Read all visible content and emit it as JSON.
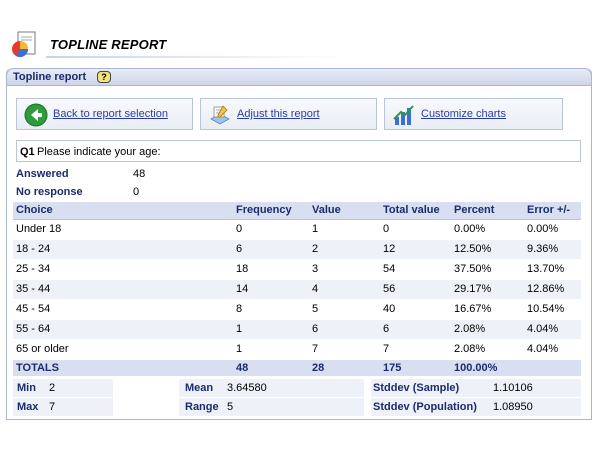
{
  "header": {
    "title": "TOPLINE REPORT"
  },
  "panel": {
    "title": "Topline report",
    "help": "?"
  },
  "toolbar": {
    "back_label": "Back to report selection",
    "adjust_label": "Adjust this report",
    "charts_label": "Customize charts"
  },
  "question": {
    "number": "Q1",
    "text": "Please indicate your age:"
  },
  "stats": {
    "answered_label": "Answered",
    "answered_value": "48",
    "noresponse_label": "No response",
    "noresponse_value": "0"
  },
  "table": {
    "columns": [
      "Choice",
      "Frequency",
      "Value",
      "Total value",
      "Percent",
      "Error +/-"
    ],
    "rows": [
      [
        "Under 18",
        "0",
        "1",
        "0",
        "0.00%",
        "0.00%"
      ],
      [
        "18 - 24",
        "6",
        "2",
        "12",
        "12.50%",
        "9.36%"
      ],
      [
        "25 - 34",
        "18",
        "3",
        "54",
        "37.50%",
        "13.70%"
      ],
      [
        "35 - 44",
        "14",
        "4",
        "56",
        "29.17%",
        "12.86%"
      ],
      [
        "45 - 54",
        "8",
        "5",
        "40",
        "16.67%",
        "10.54%"
      ],
      [
        "55 - 64",
        "1",
        "6",
        "6",
        "2.08%",
        "4.04%"
      ],
      [
        "65 or older",
        "1",
        "7",
        "7",
        "2.08%",
        "4.04%"
      ]
    ],
    "totals": [
      "TOTALS",
      "48",
      "28",
      "175",
      "100.00%",
      ""
    ]
  },
  "summary": {
    "min_label": "Min",
    "min_value": "2",
    "max_label": "Max",
    "max_value": "7",
    "mean_label": "Mean",
    "mean_value": "3.64580",
    "range_label": "Range",
    "range_value": "5",
    "sd_sample_label": "Stddev (Sample)",
    "sd_sample_value": "1.10106",
    "sd_pop_label": "Stddev (Population)",
    "sd_pop_value": "1.08950"
  },
  "colors": {
    "accent": "#1c2b6b",
    "link": "#2a3ca8",
    "header_bg": "#d7dff0",
    "stripe": "#eef1f8"
  }
}
